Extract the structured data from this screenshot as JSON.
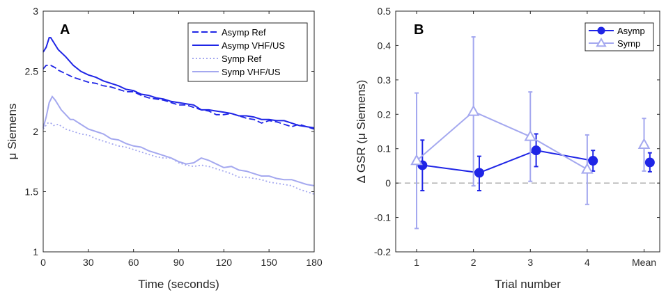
{
  "chart_data": [
    {
      "panel": "A",
      "type": "line",
      "xlabel": "Time (seconds)",
      "ylabel": "μ Siemens",
      "xlim": [
        0,
        180
      ],
      "ylim": [
        1,
        3
      ],
      "x_ticks": [
        0,
        30,
        60,
        90,
        120,
        150,
        180
      ],
      "y_ticks": [
        1,
        1.5,
        2,
        2.5,
        3
      ],
      "grid": false,
      "legend_position": "top-right",
      "series": [
        {
          "name": "Asymp Ref",
          "color": "#1f25e6",
          "style": "dashed",
          "x": [
            0,
            2,
            5,
            8,
            10,
            15,
            20,
            25,
            30,
            35,
            40,
            45,
            50,
            55,
            60,
            65,
            70,
            75,
            80,
            85,
            90,
            95,
            100,
            105,
            110,
            115,
            120,
            125,
            130,
            135,
            140,
            145,
            150,
            155,
            160,
            165,
            170,
            175,
            180
          ],
          "y": [
            2.52,
            2.55,
            2.55,
            2.53,
            2.51,
            2.48,
            2.45,
            2.43,
            2.41,
            2.4,
            2.38,
            2.37,
            2.35,
            2.33,
            2.33,
            2.3,
            2.28,
            2.27,
            2.26,
            2.24,
            2.22,
            2.22,
            2.2,
            2.18,
            2.17,
            2.14,
            2.14,
            2.15,
            2.13,
            2.11,
            2.1,
            2.07,
            2.09,
            2.08,
            2.06,
            2.04,
            2.06,
            2.04,
            2.02
          ]
        },
        {
          "name": "Asymp VHF/US",
          "color": "#1f25e6",
          "style": "solid",
          "x": [
            0,
            2,
            4,
            5,
            7,
            10,
            15,
            20,
            25,
            30,
            35,
            40,
            45,
            50,
            55,
            60,
            65,
            70,
            75,
            80,
            85,
            90,
            95,
            100,
            105,
            110,
            115,
            120,
            125,
            130,
            135,
            140,
            145,
            150,
            155,
            160,
            165,
            170,
            175,
            180
          ],
          "y": [
            2.66,
            2.7,
            2.78,
            2.78,
            2.74,
            2.68,
            2.62,
            2.55,
            2.5,
            2.47,
            2.45,
            2.42,
            2.4,
            2.38,
            2.35,
            2.34,
            2.31,
            2.3,
            2.28,
            2.27,
            2.25,
            2.24,
            2.23,
            2.22,
            2.18,
            2.18,
            2.17,
            2.16,
            2.15,
            2.13,
            2.13,
            2.12,
            2.1,
            2.1,
            2.09,
            2.09,
            2.07,
            2.05,
            2.04,
            2.03
          ]
        },
        {
          "name": "Symp Ref",
          "color": "#a4a8ef",
          "style": "dotted",
          "x": [
            0,
            3,
            5,
            7,
            10,
            15,
            20,
            25,
            30,
            35,
            40,
            45,
            50,
            55,
            60,
            65,
            70,
            75,
            80,
            85,
            90,
            95,
            100,
            105,
            110,
            115,
            120,
            125,
            130,
            135,
            140,
            145,
            150,
            155,
            160,
            165,
            170,
            175,
            180
          ],
          "y": [
            2.02,
            2.07,
            2.07,
            2.05,
            2.06,
            2.02,
            2.0,
            1.98,
            1.97,
            1.94,
            1.92,
            1.9,
            1.88,
            1.87,
            1.85,
            1.83,
            1.81,
            1.79,
            1.78,
            1.78,
            1.74,
            1.72,
            1.71,
            1.72,
            1.71,
            1.69,
            1.67,
            1.65,
            1.62,
            1.62,
            1.61,
            1.6,
            1.58,
            1.57,
            1.56,
            1.55,
            1.52,
            1.5,
            1.48
          ]
        },
        {
          "name": "Symp VHF/US",
          "color": "#a4a8ef",
          "style": "solid",
          "x": [
            0,
            2,
            4,
            6,
            8,
            10,
            12,
            15,
            18,
            20,
            25,
            30,
            35,
            40,
            45,
            50,
            55,
            60,
            65,
            70,
            75,
            80,
            85,
            90,
            95,
            100,
            105,
            110,
            115,
            120,
            125,
            130,
            135,
            140,
            145,
            150,
            155,
            160,
            165,
            170,
            175,
            180
          ],
          "y": [
            2.03,
            2.12,
            2.24,
            2.29,
            2.26,
            2.22,
            2.18,
            2.14,
            2.1,
            2.1,
            2.06,
            2.02,
            2.0,
            1.98,
            1.94,
            1.93,
            1.9,
            1.88,
            1.87,
            1.84,
            1.82,
            1.8,
            1.78,
            1.75,
            1.73,
            1.74,
            1.78,
            1.76,
            1.73,
            1.7,
            1.71,
            1.68,
            1.67,
            1.65,
            1.63,
            1.63,
            1.61,
            1.6,
            1.6,
            1.58,
            1.56,
            1.55
          ]
        }
      ]
    },
    {
      "panel": "B",
      "type": "line",
      "xlabel": "Trial number",
      "ylabel": "Δ GSR (μ Siemens)",
      "categories": [
        "1",
        "2",
        "3",
        "4",
        "Mean"
      ],
      "ylim": [
        -0.2,
        0.5
      ],
      "y_ticks": [
        -0.2,
        -0.1,
        0,
        0.1,
        0.2,
        0.3,
        0.4,
        0.5
      ],
      "y_tick_labels": [
        "-0.2",
        "-0.1",
        "0",
        "0.1",
        "0.2",
        "0.3",
        "0.4",
        "0.5"
      ],
      "reference_line": 0,
      "grid": false,
      "legend_position": "top-right",
      "series": [
        {
          "name": "Asymp",
          "color": "#1f25e6",
          "marker": "filled-circle",
          "offset": 0.1,
          "values": [
            0.052,
            0.03,
            0.095,
            0.065,
            0.06
          ],
          "error_low": [
            -0.022,
            -0.022,
            0.048,
            0.035,
            0.033
          ],
          "error_high": [
            0.125,
            0.078,
            0.143,
            0.095,
            0.088
          ],
          "connect_points": 4
        },
        {
          "name": "Symp",
          "color": "#a4a8ef",
          "marker": "open-triangle",
          "offset": 0.0,
          "values": [
            0.065,
            0.208,
            0.135,
            0.04,
            0.112
          ],
          "error_low": [
            -0.132,
            -0.008,
            0.005,
            -0.062,
            0.035
          ],
          "error_high": [
            0.262,
            0.425,
            0.265,
            0.14,
            0.188
          ],
          "connect_points": 4
        }
      ]
    }
  ]
}
